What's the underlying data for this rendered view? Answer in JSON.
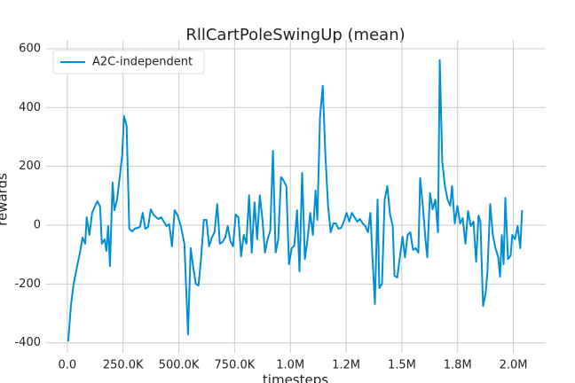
{
  "chart_data": {
    "type": "line",
    "title": "RllCartPoleSwingUp (mean)",
    "x_label": "timesteps",
    "y_label": "rewards",
    "xlim": [
      -95000,
      2145000
    ],
    "ylim": [
      -434,
      630
    ],
    "xticks": [
      {
        "value": 0,
        "label": "0.0"
      },
      {
        "value": 250000,
        "label": "250.0K"
      },
      {
        "value": 500000,
        "label": "500.0K"
      },
      {
        "value": 750000,
        "label": "750.0K"
      },
      {
        "value": 1000000,
        "label": "1.0M"
      },
      {
        "value": 1250000,
        "label": "1.2M"
      },
      {
        "value": 1500000,
        "label": "1.5M"
      },
      {
        "value": 1750000,
        "label": "1.8M"
      },
      {
        "value": 2000000,
        "label": "2.0M"
      }
    ],
    "yticks": [
      -400,
      -200,
      0,
      200,
      400,
      600
    ],
    "grid": true,
    "legend_position": "upper-left",
    "x": [
      4000,
      16000,
      28000,
      44000,
      56000,
      68000,
      80000,
      87000,
      99000,
      111000,
      123000,
      135000,
      147000,
      155000,
      167000,
      175000,
      183000,
      191000,
      203000,
      211000,
      223000,
      235000,
      246000,
      254000,
      266000,
      278000,
      290000,
      302000,
      314000,
      326000,
      338000,
      350000,
      362000,
      374000,
      386000,
      398000,
      409000,
      421000,
      433000,
      445000,
      457000,
      469000,
      481000,
      493000,
      509000,
      525000,
      541000,
      553000,
      564000,
      576000,
      588000,
      600000,
      612000,
      624000,
      636000,
      648000,
      660000,
      672000,
      684000,
      696000,
      708000,
      719000,
      731000,
      743000,
      755000,
      767000,
      779000,
      791000,
      803000,
      815000,
      827000,
      839000,
      851000,
      863000,
      875000,
      886000,
      898000,
      910000,
      922000,
      934000,
      946000,
      958000,
      970000,
      982000,
      994000,
      1006000,
      1018000,
      1030000,
      1041000,
      1053000,
      1065000,
      1077000,
      1089000,
      1101000,
      1113000,
      1121000,
      1133000,
      1145000,
      1157000,
      1169000,
      1181000,
      1193000,
      1204000,
      1216000,
      1228000,
      1240000,
      1252000,
      1264000,
      1276000,
      1288000,
      1300000,
      1312000,
      1324000,
      1336000,
      1348000,
      1359000,
      1367000,
      1379000,
      1391000,
      1399000,
      1411000,
      1423000,
      1435000,
      1447000,
      1459000,
      1467000,
      1479000,
      1491000,
      1503000,
      1514000,
      1526000,
      1538000,
      1550000,
      1562000,
      1574000,
      1582000,
      1594000,
      1606000,
      1614000,
      1626000,
      1638000,
      1650000,
      1662000,
      1670000,
      1681000,
      1693000,
      1705000,
      1717000,
      1725000,
      1737000,
      1749000,
      1761000,
      1773000,
      1785000,
      1797000,
      1809000,
      1821000,
      1833000,
      1844000,
      1852000,
      1864000,
      1876000,
      1884000,
      1896000,
      1908000,
      1920000,
      1932000,
      1940000,
      1948000,
      1956000,
      1964000,
      1976000,
      1988000,
      1995000,
      2007000,
      2019000,
      2031000,
      2039000
    ],
    "series": [
      {
        "name": "A2C-independent",
        "color": "#008fd5",
        "values": [
          -395,
          -275,
          -200,
          -140,
          -95,
          -42,
          -63,
          27,
          -33,
          42,
          63,
          81,
          63,
          -63,
          -48,
          -87,
          -3,
          -139,
          145,
          51,
          87,
          163,
          238,
          371,
          338,
          -12,
          -21,
          -12,
          -9,
          -6,
          42,
          -12,
          -6,
          54,
          36,
          27,
          21,
          27,
          12,
          -3,
          3,
          -72,
          51,
          36,
          -3,
          -63,
          -371,
          -78,
          -139,
          -199,
          -205,
          -109,
          18,
          18,
          -72,
          -42,
          -24,
          72,
          -63,
          -57,
          -42,
          -3,
          -54,
          -72,
          36,
          27,
          -106,
          -33,
          -63,
          102,
          -93,
          78,
          -48,
          102,
          18,
          -93,
          -48,
          -18,
          253,
          -93,
          -48,
          163,
          151,
          133,
          -133,
          -78,
          -69,
          51,
          -157,
          178,
          -115,
          -48,
          42,
          -33,
          118,
          18,
          365,
          474,
          238,
          66,
          -24,
          6,
          6,
          -12,
          -9,
          12,
          42,
          12,
          42,
          27,
          12,
          21,
          6,
          -3,
          -24,
          42,
          -93,
          -268,
          87,
          -214,
          -199,
          87,
          133,
          36,
          -3,
          -172,
          -178,
          -109,
          -39,
          -109,
          -33,
          -24,
          -84,
          -78,
          -93,
          160,
          66,
          -48,
          -109,
          109,
          54,
          87,
          -24,
          561,
          217,
          133,
          87,
          66,
          133,
          6,
          66,
          6,
          24,
          -63,
          48,
          -3,
          12,
          -124,
          33,
          12,
          -275,
          -229,
          -154,
          72,
          -33,
          -78,
          -109,
          -175,
          -33,
          -133,
          93,
          -115,
          -103,
          -33,
          -48,
          -3,
          -78,
          51
        ]
      }
    ]
  }
}
